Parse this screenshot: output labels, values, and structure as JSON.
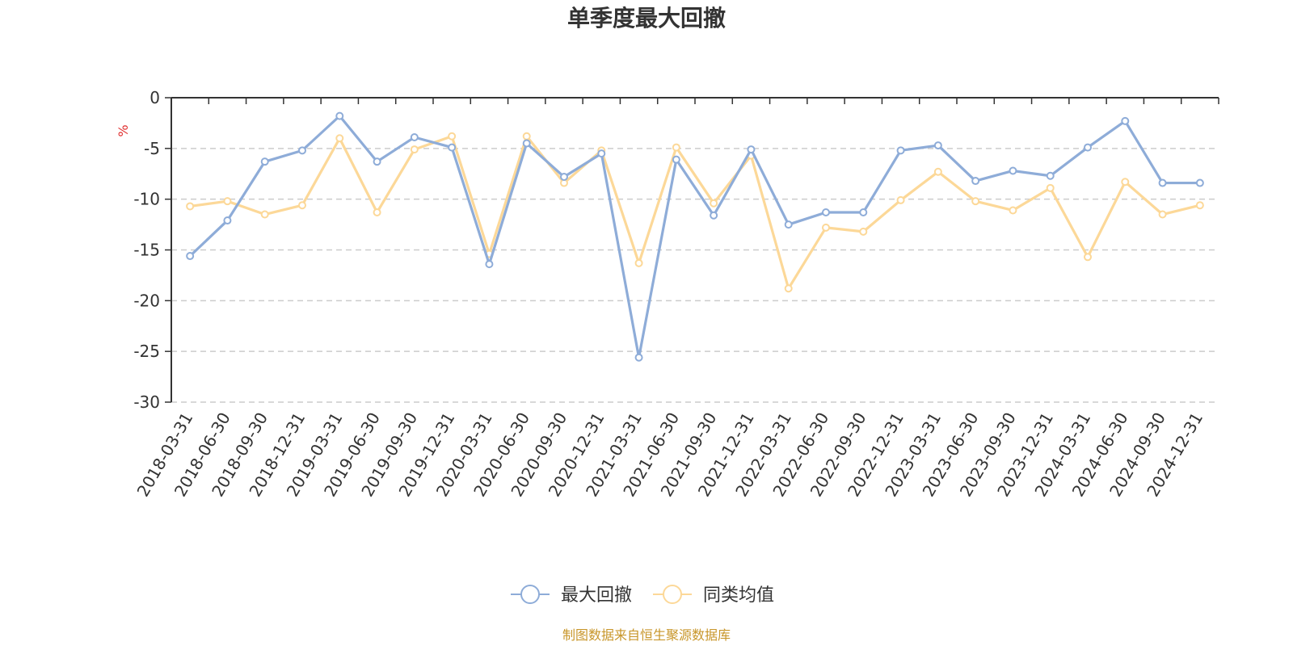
{
  "chart_data": {
    "type": "line",
    "title": "单季度最大回撤",
    "ylabel": "%",
    "ylim": [
      -30,
      0
    ],
    "yticks": [
      0,
      -5,
      -10,
      -15,
      -20,
      -25,
      -30
    ],
    "grid": true,
    "legend_position": "bottom-center",
    "categories": [
      "2018-03-31",
      "2018-06-30",
      "2018-09-30",
      "2018-12-31",
      "2019-03-31",
      "2019-06-30",
      "2019-09-30",
      "2019-12-31",
      "2020-03-31",
      "2020-06-30",
      "2020-09-30",
      "2020-12-31",
      "2021-03-31",
      "2021-06-30",
      "2021-09-30",
      "2021-12-31",
      "2022-03-31",
      "2022-06-30",
      "2022-09-30",
      "2022-12-31",
      "2023-03-31",
      "2023-06-30",
      "2023-09-30",
      "2023-12-31",
      "2024-03-31",
      "2024-06-30",
      "2024-09-30",
      "2024-12-31"
    ],
    "series": [
      {
        "name": "最大回撤",
        "color": "#8eacd8",
        "values": [
          -15.6,
          -12.1,
          -6.3,
          -5.2,
          -1.8,
          -6.3,
          -3.9,
          -4.9,
          -16.4,
          -4.5,
          -7.8,
          -5.5,
          -25.6,
          -6.1,
          -11.6,
          -5.1,
          -12.5,
          -11.3,
          -11.3,
          -5.2,
          -4.7,
          -8.2,
          -7.2,
          -7.7,
          -4.9,
          -2.3,
          -8.4,
          -8.4
        ]
      },
      {
        "name": "同类均值",
        "color": "#fcd898",
        "values": [
          -10.7,
          -10.2,
          -11.5,
          -10.6,
          -4.0,
          -11.3,
          -5.1,
          -3.8,
          -15.4,
          -3.8,
          -8.4,
          -5.2,
          -16.3,
          -4.9,
          -10.4,
          -5.7,
          -18.8,
          -12.8,
          -13.2,
          -10.1,
          -7.3,
          -10.2,
          -11.1,
          -8.9,
          -15.7,
          -8.3,
          -11.5,
          -10.6
        ]
      }
    ]
  },
  "source_text": "制图数据来自恒生聚源数据库",
  "colors": {
    "axis": "#333333",
    "grid": "#cccccc",
    "unit": "#e03030",
    "source": "#c8962a"
  }
}
